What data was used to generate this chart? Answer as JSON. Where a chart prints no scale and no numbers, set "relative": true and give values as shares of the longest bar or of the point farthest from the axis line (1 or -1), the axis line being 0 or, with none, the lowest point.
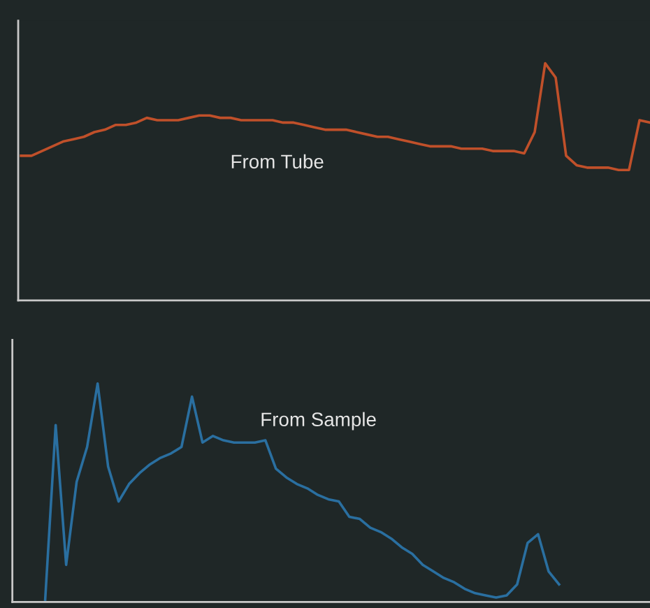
{
  "chart_data": [
    {
      "type": "line",
      "relative": true,
      "annotations": [
        "From Tube"
      ],
      "categories": [
        null,
        null,
        null,
        null,
        null,
        null,
        null,
        null,
        null,
        null,
        null,
        null,
        null,
        null,
        null,
        null,
        null,
        null,
        null,
        null,
        null,
        null,
        null,
        null,
        null,
        null,
        null,
        null,
        null,
        null,
        null,
        null,
        null,
        null,
        null,
        null,
        null,
        null,
        null,
        null,
        null,
        null,
        null,
        null,
        null,
        null,
        null,
        null,
        null,
        null,
        null,
        null,
        null,
        null,
        null,
        null,
        null,
        null,
        null,
        null,
        null
      ],
      "series": [
        {
          "color": "#c0502a",
          "values": [
            0.61,
            0.61,
            0.63,
            0.65,
            0.67,
            0.68,
            0.69,
            0.71,
            0.72,
            0.74,
            0.74,
            0.75,
            0.77,
            0.76,
            0.76,
            0.76,
            0.77,
            0.78,
            0.78,
            0.77,
            0.77,
            0.76,
            0.76,
            0.76,
            0.76,
            0.75,
            0.75,
            0.74,
            0.73,
            0.72,
            0.72,
            0.72,
            0.71,
            0.7,
            0.69,
            0.69,
            0.68,
            0.67,
            0.66,
            0.65,
            0.65,
            0.65,
            0.64,
            0.64,
            0.64,
            0.63,
            0.63,
            0.63,
            0.62,
            0.71,
            1.0,
            0.94,
            0.61,
            0.57,
            0.56,
            0.56,
            0.56,
            0.55,
            0.55,
            0.76,
            0.75
          ]
        }
      ],
      "tick_labels": false
    },
    {
      "type": "line",
      "relative": true,
      "annotations": [
        "From Sample"
      ],
      "categories": [
        null,
        null,
        null,
        null,
        null,
        null,
        null,
        null,
        null,
        null,
        null,
        null,
        null,
        null,
        null,
        null,
        null,
        null,
        null,
        null,
        null,
        null,
        null,
        null,
        null,
        null,
        null,
        null,
        null,
        null,
        null,
        null,
        null,
        null,
        null,
        null,
        null,
        null,
        null,
        null,
        null,
        null,
        null,
        null,
        null,
        null,
        null,
        null,
        null,
        null,
        null,
        null,
        null,
        null,
        null,
        null,
        null,
        null,
        null,
        null,
        null
      ],
      "series": [
        {
          "color": "#2a6fa0",
          "values": [
            null,
            null,
            null,
            0.01,
            0.81,
            0.17,
            0.55,
            0.71,
            1.0,
            0.62,
            0.46,
            0.54,
            0.59,
            0.63,
            0.66,
            0.68,
            0.71,
            0.94,
            0.73,
            0.76,
            0.74,
            0.73,
            0.73,
            0.73,
            0.74,
            0.61,
            0.57,
            0.54,
            0.52,
            0.49,
            0.47,
            0.46,
            0.39,
            0.38,
            0.34,
            0.32,
            0.29,
            0.25,
            0.22,
            0.17,
            0.14,
            0.11,
            0.09,
            0.06,
            0.04,
            0.03,
            0.02,
            0.03,
            0.08,
            0.27,
            0.31,
            0.14,
            0.08,
            null,
            null,
            null,
            null,
            null,
            null,
            null,
            null
          ]
        }
      ],
      "tick_labels": false
    }
  ]
}
